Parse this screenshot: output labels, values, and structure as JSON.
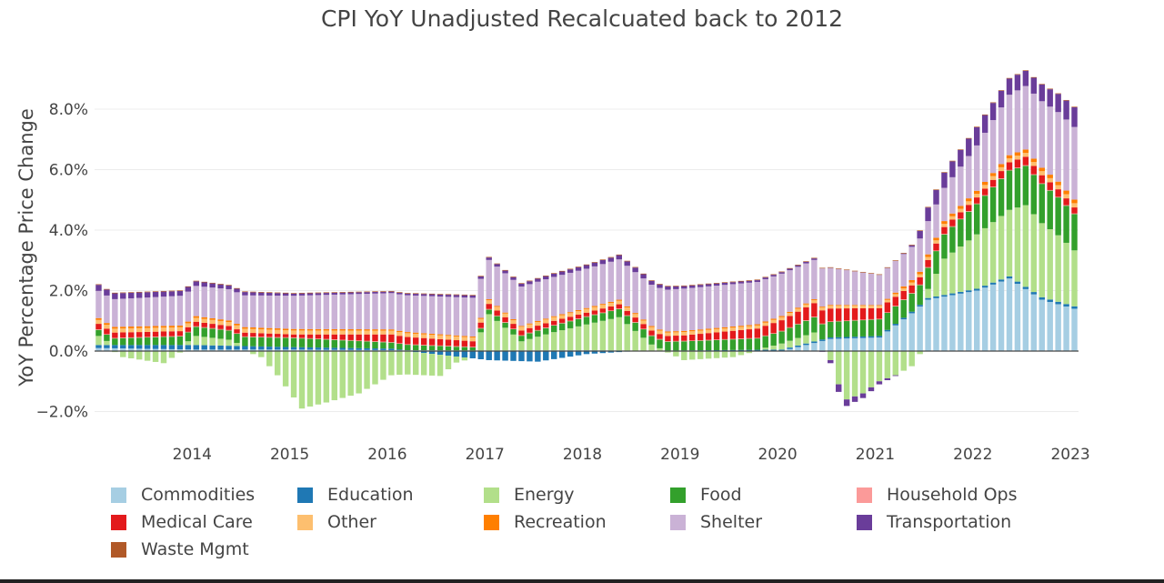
{
  "chart_data": {
    "type": "bar",
    "stacking": "relative",
    "title": "CPI YoY Unadjusted Recalcuated back to 2012",
    "xlabel": "",
    "ylabel": "YoY Percentage Price Change",
    "ylim": [
      -0.025,
      0.092
    ],
    "yticks": [
      {
        "value": -0.02,
        "label": "−2.0%"
      },
      {
        "value": 0.0,
        "label": "0.0%"
      },
      {
        "value": 0.02,
        "label": "2.0%"
      },
      {
        "value": 0.04,
        "label": "4.0%"
      },
      {
        "value": 0.06,
        "label": "6.0%"
      },
      {
        "value": 0.08,
        "label": "8.0%"
      }
    ],
    "x_start": "2013-01",
    "x_end": "2023-01",
    "xticks": [
      "2014",
      "2015",
      "2016",
      "2017",
      "2018",
      "2019",
      "2020",
      "2021",
      "2022",
      "2023"
    ],
    "gridlines": true,
    "legend_position": "bottom",
    "series": [
      {
        "name": "Commodities",
        "color": "#a6cee3",
        "anchors": [
          [
            0,
            0.001
          ],
          [
            12,
            0.0005
          ],
          [
            24,
            0.0005
          ],
          [
            36,
            0.0003
          ],
          [
            48,
            0.0002
          ],
          [
            60,
            0.0003
          ],
          [
            72,
            0.0
          ],
          [
            84,
            0.0
          ],
          [
            90,
            0.004
          ],
          [
            96,
            0.0045
          ],
          [
            100,
            0.0125
          ],
          [
            102,
            0.017
          ],
          [
            108,
            0.02
          ],
          [
            112,
            0.024
          ],
          [
            116,
            0.017
          ],
          [
            120,
            0.014
          ],
          [
            124,
            0.005
          ],
          [
            126,
            0.003
          ]
        ]
      },
      {
        "name": "Education",
        "color": "#1f78b4",
        "anchors": [
          [
            0,
            0.001
          ],
          [
            12,
            0.0015
          ],
          [
            24,
            0.0008
          ],
          [
            36,
            0.0005
          ],
          [
            44,
            -0.0018
          ],
          [
            48,
            -0.003
          ],
          [
            54,
            -0.0035
          ],
          [
            60,
            -0.001
          ],
          [
            66,
            0.0
          ],
          [
            72,
            0.0002
          ],
          [
            84,
            0.0005
          ],
          [
            96,
            0.0005
          ],
          [
            108,
            0.0006
          ],
          [
            116,
            0.0008
          ],
          [
            126,
            0.0008
          ]
        ]
      },
      {
        "name": "Energy",
        "color": "#b2df8a",
        "anchors": [
          [
            0,
            0.003
          ],
          [
            3,
            -0.002
          ],
          [
            8,
            -0.004
          ],
          [
            12,
            0.003
          ],
          [
            16,
            0.002
          ],
          [
            20,
            -0.002
          ],
          [
            22,
            -0.008
          ],
          [
            25,
            -0.019
          ],
          [
            28,
            -0.017
          ],
          [
            32,
            -0.014
          ],
          [
            36,
            -0.008
          ],
          [
            42,
            -0.007
          ],
          [
            44,
            -0.002
          ],
          [
            46,
            0.0
          ],
          [
            48,
            0.012
          ],
          [
            52,
            0.003
          ],
          [
            56,
            0.006
          ],
          [
            64,
            0.011
          ],
          [
            68,
            0.002
          ],
          [
            72,
            -0.003
          ],
          [
            78,
            -0.002
          ],
          [
            84,
            0.002
          ],
          [
            88,
            0.003
          ],
          [
            90,
            -0.003
          ],
          [
            91,
            -0.011
          ],
          [
            92,
            -0.016
          ],
          [
            94,
            -0.014
          ],
          [
            96,
            -0.01
          ],
          [
            98,
            -0.008
          ],
          [
            100,
            -0.005
          ],
          [
            102,
            0.003
          ],
          [
            104,
            0.012
          ],
          [
            106,
            0.015
          ],
          [
            108,
            0.018
          ],
          [
            112,
            0.022
          ],
          [
            114,
            0.027
          ],
          [
            118,
            0.022
          ],
          [
            122,
            0.015
          ],
          [
            124,
            0.008
          ],
          [
            126,
            0.006
          ]
        ]
      },
      {
        "name": "Food",
        "color": "#33a02c",
        "anchors": [
          [
            0,
            0.002
          ],
          [
            12,
            0.003
          ],
          [
            24,
            0.003
          ],
          [
            36,
            0.002
          ],
          [
            46,
            0.001
          ],
          [
            48,
            0.0015
          ],
          [
            60,
            0.0025
          ],
          [
            72,
            0.003
          ],
          [
            84,
            0.004
          ],
          [
            88,
            0.005
          ],
          [
            96,
            0.0055
          ],
          [
            100,
            0.006
          ],
          [
            104,
            0.008
          ],
          [
            108,
            0.01
          ],
          [
            112,
            0.013
          ],
          [
            116,
            0.013
          ],
          [
            120,
            0.012
          ],
          [
            124,
            0.0105
          ],
          [
            126,
            0.0105
          ]
        ]
      },
      {
        "name": "Household Ops",
        "color": "#fb9a99",
        "anchors": [
          [
            0,
            0.0002
          ],
          [
            126,
            0.0002
          ]
        ]
      },
      {
        "name": "Medical Care",
        "color": "#e31a1c",
        "anchors": [
          [
            0,
            0.0018
          ],
          [
            12,
            0.0015
          ],
          [
            24,
            0.001
          ],
          [
            36,
            0.0025
          ],
          [
            48,
            0.0017
          ],
          [
            60,
            0.0012
          ],
          [
            72,
            0.0018
          ],
          [
            84,
            0.0035
          ],
          [
            88,
            0.0045
          ],
          [
            96,
            0.0035
          ],
          [
            100,
            0.0025
          ],
          [
            108,
            0.002
          ],
          [
            114,
            0.0028
          ],
          [
            118,
            0.0025
          ],
          [
            120,
            0.002
          ],
          [
            124,
            0.0008
          ],
          [
            126,
            0.0005
          ]
        ]
      },
      {
        "name": "Other",
        "color": "#fdbf6f",
        "anchors": [
          [
            0,
            0.0013
          ],
          [
            24,
            0.0013
          ],
          [
            60,
            0.0012
          ],
          [
            84,
            0.001
          ],
          [
            96,
            0.0008
          ],
          [
            108,
            0.0012
          ],
          [
            126,
            0.0015
          ]
        ]
      },
      {
        "name": "Recreation",
        "color": "#ff7f00",
        "anchors": [
          [
            0,
            0.0006
          ],
          [
            24,
            0.0005
          ],
          [
            48,
            0.0003
          ],
          [
            84,
            0.0004
          ],
          [
            96,
            0.0002
          ],
          [
            100,
            0.0008
          ],
          [
            108,
            0.001
          ],
          [
            120,
            0.0012
          ],
          [
            126,
            0.0012
          ]
        ]
      },
      {
        "name": "Shelter",
        "color": "#cab2d6",
        "anchors": [
          [
            0,
            0.009
          ],
          [
            12,
            0.01
          ],
          [
            24,
            0.011
          ],
          [
            36,
            0.012
          ],
          [
            48,
            0.013
          ],
          [
            60,
            0.013
          ],
          [
            72,
            0.014
          ],
          [
            84,
            0.014
          ],
          [
            88,
            0.013
          ],
          [
            96,
            0.01
          ],
          [
            100,
            0.011
          ],
          [
            104,
            0.011
          ],
          [
            108,
            0.015
          ],
          [
            112,
            0.02
          ],
          [
            116,
            0.022
          ],
          [
            120,
            0.024
          ],
          [
            124,
            0.026
          ],
          [
            126,
            0.026
          ]
        ]
      },
      {
        "name": "Transportation",
        "color": "#6a3d9a",
        "anchors": [
          [
            0,
            0.002
          ],
          [
            12,
            0.0015
          ],
          [
            24,
            0.0007
          ],
          [
            36,
            0.0005
          ],
          [
            48,
            0.0008
          ],
          [
            60,
            0.0012
          ],
          [
            66,
            0.0015
          ],
          [
            72,
            0.0008
          ],
          [
            84,
            0.0005
          ],
          [
            88,
            0.0005
          ],
          [
            90,
            -0.001
          ],
          [
            91,
            -0.0025
          ],
          [
            93,
            -0.0018
          ],
          [
            96,
            -0.001
          ],
          [
            100,
            0.0005
          ],
          [
            102,
            0.0045
          ],
          [
            104,
            0.005
          ],
          [
            108,
            0.006
          ],
          [
            114,
            0.005
          ],
          [
            118,
            0.006
          ],
          [
            120,
            0.0065
          ],
          [
            122,
            0.0075
          ],
          [
            124,
            0.008
          ],
          [
            126,
            0.0085
          ]
        ]
      },
      {
        "name": "Waste Mgmt",
        "color": "#b15928",
        "anchors": [
          [
            0,
            0.0002
          ],
          [
            126,
            0.0002
          ]
        ]
      }
    ]
  }
}
